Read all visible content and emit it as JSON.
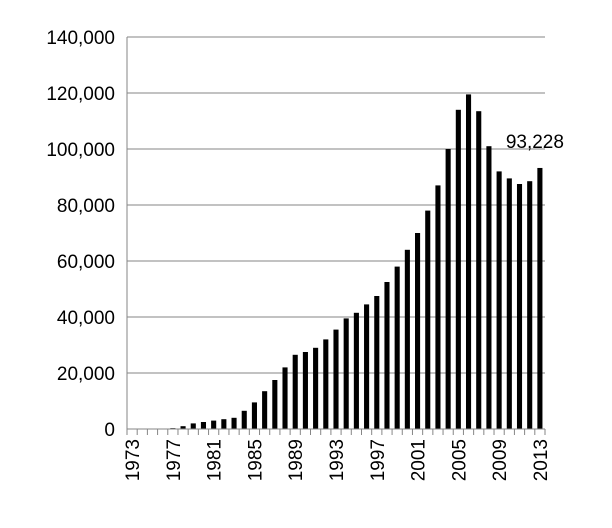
{
  "chart_data": {
    "type": "bar",
    "categories": [
      "1973",
      null,
      null,
      null,
      "1977",
      null,
      null,
      null,
      "1981",
      null,
      null,
      null,
      "1985",
      null,
      null,
      null,
      "1989",
      null,
      null,
      null,
      "1993",
      null,
      null,
      null,
      "1997",
      null,
      null,
      null,
      "2001",
      null,
      null,
      null,
      "2005",
      null,
      null,
      null,
      "2009",
      null,
      null,
      null,
      "2013"
    ],
    "values": [
      0,
      0,
      0,
      0,
      300,
      1000,
      2000,
      2500,
      3000,
      3500,
      4000,
      6500,
      9500,
      13500,
      17500,
      22000,
      26500,
      27500,
      29000,
      32000,
      35500,
      39500,
      41500,
      44500,
      47500,
      52500,
      58000,
      64000,
      70000,
      78000,
      87000,
      100000,
      114000,
      119500,
      113500,
      101000,
      92000,
      89500,
      87500,
      88500,
      93228
    ],
    "value_labels": [
      null,
      null,
      null,
      null,
      null,
      null,
      null,
      null,
      null,
      null,
      null,
      null,
      null,
      null,
      null,
      null,
      null,
      null,
      null,
      null,
      null,
      null,
      null,
      null,
      null,
      null,
      null,
      null,
      null,
      null,
      null,
      null,
      null,
      null,
      null,
      null,
      null,
      null,
      null,
      null,
      "93,228"
    ],
    "color": "#000000",
    "ylim": [
      0,
      140000
    ],
    "yticks": [
      0,
      {
        "value": 20000,
        "label": "20,000"
      },
      {
        "value": 40000,
        "label": "40,000"
      },
      {
        "value": 60000,
        "label": "60,000"
      },
      {
        "value": 80000,
        "label": "80,000"
      },
      {
        "value": 100000,
        "label": "100,000"
      },
      {
        "value": 120000,
        "label": "120,000"
      },
      {
        "value": 140000,
        "label": "140,000"
      }
    ],
    "grid": true
  }
}
